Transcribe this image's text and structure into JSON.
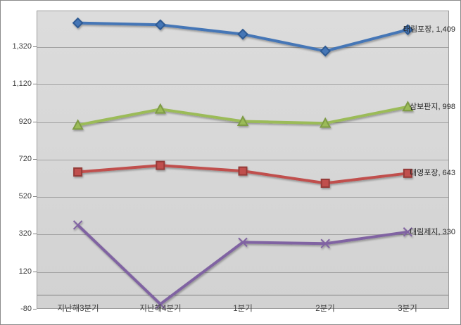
{
  "chart_data": {
    "type": "line",
    "title": "",
    "xlabel": "",
    "ylabel": "",
    "categories": [
      "지난해3분기",
      "지난해4분기",
      "1분기",
      "2분기",
      "3분기"
    ],
    "series": [
      {
        "name": "태림포장",
        "marker": "diamond",
        "color": "#4576b6",
        "edge": "#2f5a93",
        "values": [
          1445,
          1435,
          1385,
          1295,
          1409
        ],
        "end_label": "태림포장, 1,409"
      },
      {
        "name": "삼보판지",
        "marker": "triangle",
        "color": "#9bbb59",
        "edge": "#7e9b44",
        "values": [
          900,
          985,
          920,
          910,
          998
        ],
        "end_label": "삼보판지, 998"
      },
      {
        "name": "대영포장",
        "marker": "square",
        "color": "#c0504d",
        "edge": "#953b38",
        "values": [
          650,
          685,
          655,
          590,
          643
        ],
        "end_label": "대영포장, 643"
      },
      {
        "name": "대림제지",
        "marker": "x",
        "color": "#8064a2",
        "edge": "#65507f",
        "values": [
          367,
          -55,
          275,
          268,
          330
        ],
        "end_label": "대림제지, 330"
      }
    ],
    "y_axis": {
      "min": -80,
      "max": 1511,
      "tick_values": [
        1320,
        1120,
        920,
        720,
        520,
        320,
        120,
        -80
      ],
      "tick_labels": [
        "1,320",
        "1,120",
        "920",
        "720",
        "520",
        "320",
        "120",
        "-80"
      ],
      "zero_line": 0
    },
    "grid": true,
    "legend_position": "none (labels at line ends)"
  },
  "colors": {
    "plot_background": "#d6d6d6",
    "gridline": "#a3a3a3",
    "axis_line": "#7f7f7f",
    "plot_border": "#9b9b9b",
    "chart_border": "#8a8a8a",
    "label_text": "#262626",
    "axis_text": "#3f3f3f"
  }
}
